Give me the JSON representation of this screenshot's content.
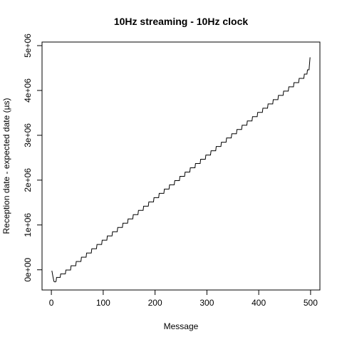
{
  "chart_data": {
    "type": "line",
    "title": "10Hz streaming - 10Hz clock",
    "xlabel": "Message",
    "ylabel": "Reception date - expected date (µs)",
    "xlim": [
      -18,
      518
    ],
    "ylim": [
      -450000,
      5080000
    ],
    "x_ticks": [
      0,
      100,
      200,
      300,
      400,
      500
    ],
    "x_tick_labels": [
      "0",
      "100",
      "200",
      "300",
      "400",
      "500"
    ],
    "y_ticks": [
      0,
      1000000,
      2000000,
      3000000,
      4000000,
      5000000
    ],
    "y_tick_labels": [
      "0e+00",
      "1e+06",
      "2e+06",
      "3e+06",
      "4e+06",
      "5e+06"
    ],
    "grid": false,
    "line_color": "#000000",
    "series": [
      {
        "x": [
          1,
          3,
          5,
          7,
          9,
          10,
          17,
          18,
          27,
          28,
          37,
          38,
          47,
          48,
          57,
          58,
          67,
          68,
          77,
          78,
          87,
          88,
          97,
          98,
          107,
          108,
          117,
          118,
          127,
          128,
          137,
          138,
          147,
          148,
          157,
          158,
          167,
          168,
          177,
          178,
          187,
          188,
          197,
          198,
          207,
          208,
          217,
          218,
          227,
          228,
          237,
          238,
          247,
          248,
          257,
          258,
          267,
          268,
          277,
          278,
          287,
          288,
          297,
          298,
          307,
          308,
          317,
          318,
          327,
          328,
          337,
          338,
          347,
          348,
          357,
          358,
          367,
          368,
          377,
          378,
          387,
          388,
          397,
          398,
          407,
          408,
          417,
          418,
          427,
          428,
          437,
          438,
          447,
          448,
          457,
          458,
          467,
          468,
          477,
          478,
          487,
          488,
          493,
          494,
          497,
          499
        ],
        "y": [
          -20000,
          -150000,
          -260000,
          -270000,
          -260000,
          -170000,
          -170000,
          -90000,
          -90000,
          -5000,
          -5000,
          90000,
          90000,
          185000,
          185000,
          280000,
          280000,
          375000,
          375000,
          470000,
          470000,
          565000,
          565000,
          660000,
          660000,
          755000,
          755000,
          850000,
          850000,
          945000,
          945000,
          1040000,
          1040000,
          1135000,
          1135000,
          1230000,
          1230000,
          1325000,
          1325000,
          1420000,
          1420000,
          1515000,
          1515000,
          1610000,
          1610000,
          1705000,
          1705000,
          1800000,
          1800000,
          1895000,
          1895000,
          1990000,
          1990000,
          2085000,
          2085000,
          2180000,
          2180000,
          2275000,
          2275000,
          2370000,
          2370000,
          2465000,
          2465000,
          2560000,
          2560000,
          2655000,
          2655000,
          2750000,
          2750000,
          2845000,
          2845000,
          2940000,
          2940000,
          3035000,
          3035000,
          3130000,
          3130000,
          3225000,
          3225000,
          3320000,
          3320000,
          3415000,
          3415000,
          3510000,
          3510000,
          3605000,
          3605000,
          3700000,
          3700000,
          3795000,
          3795000,
          3890000,
          3890000,
          3985000,
          3985000,
          4080000,
          4080000,
          4175000,
          4175000,
          4270000,
          4270000,
          4365000,
          4365000,
          4460000,
          4460000,
          4740000
        ]
      }
    ]
  }
}
